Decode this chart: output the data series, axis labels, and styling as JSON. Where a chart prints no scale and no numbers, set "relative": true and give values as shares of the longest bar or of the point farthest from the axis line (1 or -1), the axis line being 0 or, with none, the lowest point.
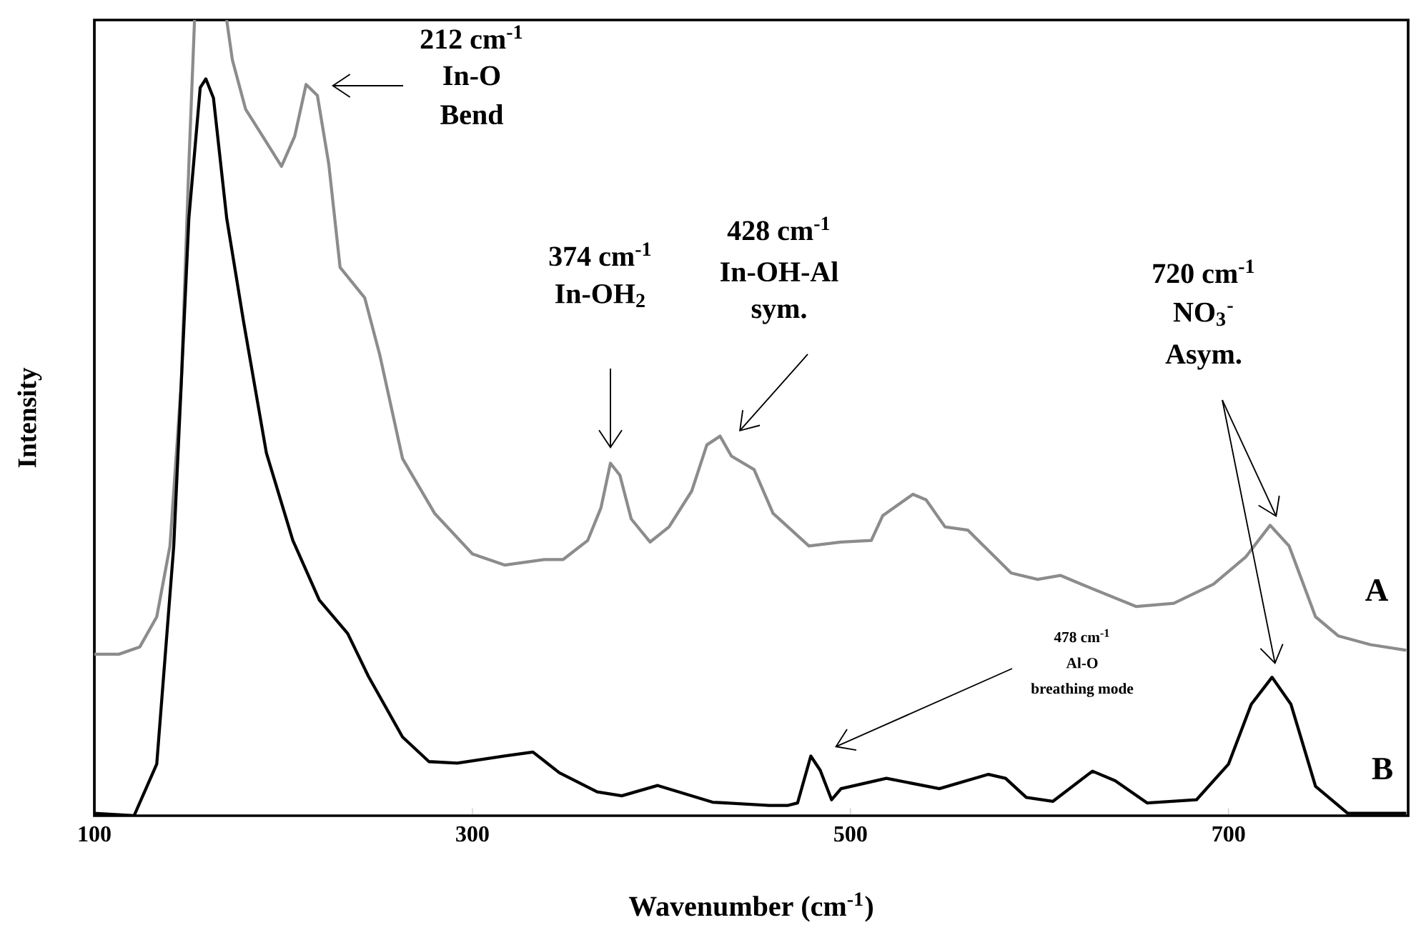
{
  "chart_data": {
    "type": "line",
    "relative": true,
    "xlabel": "Wavenumber (cm$^{-1}$)",
    "ylabel": "Intensity",
    "xlim": [
      100,
      795
    ],
    "xticks": [
      100,
      300,
      500,
      700
    ],
    "series": [
      {
        "name": "A",
        "color": "#8c8c8c",
        "x": [
          100,
          113,
          124,
          133,
          140,
          146,
          150,
          153,
          160,
          170,
          173,
          180,
          189,
          199,
          206,
          212,
          218,
          224,
          230,
          243,
          251,
          263,
          280,
          300,
          317,
          338,
          348,
          361,
          368,
          373,
          378,
          384,
          394,
          404,
          416,
          424,
          431,
          437,
          449,
          459,
          478,
          495,
          511,
          517,
          533,
          540,
          550,
          562,
          585,
          599,
          611,
          622,
          651,
          671,
          692,
          709,
          722,
          732,
          746,
          758,
          775,
          794
        ],
        "values": [
          0.203,
          0.203,
          0.212,
          0.25,
          0.339,
          0.545,
          0.819,
          1.0,
          null,
          1.0,
          0.95,
          0.888,
          0.854,
          0.816,
          0.854,
          0.919,
          0.905,
          0.819,
          0.689,
          0.651,
          0.579,
          0.449,
          0.38,
          0.329,
          0.315,
          0.322,
          0.322,
          0.346,
          0.387,
          0.443,
          0.428,
          0.373,
          0.344,
          0.363,
          0.408,
          0.466,
          0.477,
          0.452,
          0.435,
          0.38,
          0.339,
          0.344,
          0.346,
          0.377,
          0.404,
          0.397,
          0.363,
          0.359,
          0.305,
          0.297,
          0.302,
          0.291,
          0.263,
          0.267,
          0.291,
          0.325,
          0.365,
          0.339,
          0.25,
          0.226,
          0.215,
          0.208
        ]
      },
      {
        "name": "B",
        "color": "#000000",
        "x": [
          100,
          121,
          133,
          142,
          150,
          156,
          159,
          163,
          170,
          179,
          191,
          205,
          219,
          234,
          245,
          263,
          277,
          292,
          317,
          332,
          346,
          366,
          379,
          398,
          427,
          457,
          467,
          472,
          479,
          484,
          490,
          495,
          519,
          547,
          573,
          582,
          593,
          607,
          628,
          640,
          657,
          683,
          700,
          712,
          723,
          733,
          746,
          763,
          794
        ],
        "values": [
          0.003,
          0.0,
          0.065,
          0.339,
          0.751,
          0.915,
          0.926,
          0.902,
          0.751,
          0.62,
          0.456,
          0.346,
          0.271,
          0.229,
          0.175,
          0.099,
          0.068,
          0.066,
          0.075,
          0.08,
          0.054,
          0.03,
          0.025,
          0.038,
          0.017,
          0.013,
          0.013,
          0.016,
          0.075,
          0.057,
          0.02,
          0.034,
          0.047,
          0.034,
          0.052,
          0.047,
          0.023,
          0.018,
          0.056,
          0.044,
          0.016,
          0.02,
          0.065,
          0.14,
          0.174,
          0.14,
          0.037,
          0.003,
          0.003
        ]
      }
    ],
    "annotations": [
      "212 cm$^{-1}$",
      "In-O",
      "Bend",
      "374 cm$^{-1}$",
      "In-OH$_{2}$",
      "428 cm$^{-1}$",
      "In-OH-Al",
      "sym.",
      "720 cm$^{-1}$",
      "NO$_{3}$$^{-}$",
      "Asym.",
      "478 cm$^{-1}$",
      "Al-O",
      "breathing mode"
    ]
  }
}
